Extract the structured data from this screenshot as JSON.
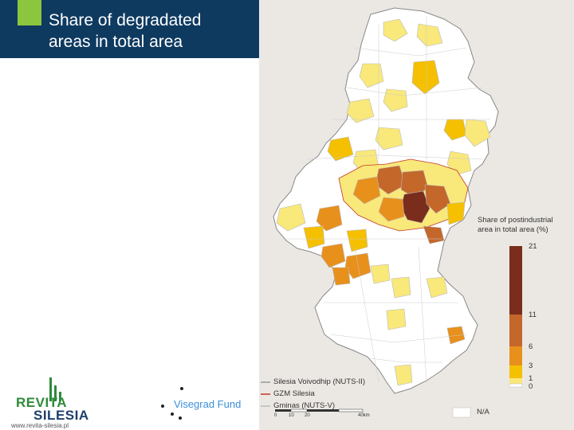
{
  "header": {
    "title_line1": "Share of degradated",
    "title_line2": "areas in total area",
    "background": "#0e3a60",
    "accent": "#8cc63f"
  },
  "map": {
    "legend": {
      "title_line1": "Share of postindustrial",
      "title_line2": "area in total area (%)",
      "classes": [
        {
          "label": "21",
          "color": "#7a2d1c"
        },
        {
          "label": "11",
          "color": "#c4672a"
        },
        {
          "label": "6",
          "color": "#e8901c"
        },
        {
          "label": "3",
          "color": "#f5c000"
        },
        {
          "label": "1",
          "color": "#f9e87a"
        },
        {
          "label": "0",
          "color": "#ffffff"
        }
      ],
      "na_label": "N/A"
    },
    "line_legend": [
      {
        "label": "Silesia Voivodhip (NUTS-II)",
        "color": "#999999"
      },
      {
        "label": "GZM Silesia",
        "color": "#c0392b"
      },
      {
        "label": "Gminas (NUTS-V)",
        "color": "#bbbbbb"
      }
    ],
    "scale_labels": [
      "0",
      "10",
      "20",
      "40km"
    ]
  },
  "logos": {
    "revita_line1": "REVITA",
    "revita_line2": "SILESIA",
    "revita_url": "www.revita-silesia.pl",
    "visegrad": "Visegrad Fund"
  }
}
